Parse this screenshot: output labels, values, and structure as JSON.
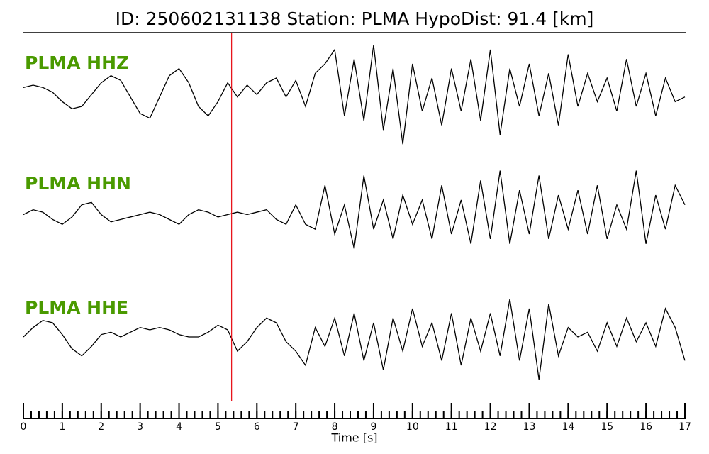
{
  "chart_data": {
    "type": "line",
    "title": "ID: 250602131138   Station: PLMA   HypoDist:    91.4 [km]",
    "x_label": "Time [s]",
    "xlim": [
      0,
      17
    ],
    "xticks": [
      0,
      1,
      2,
      3,
      4,
      5,
      6,
      7,
      8,
      9,
      10,
      11,
      12,
      13,
      14,
      15,
      16,
      17
    ],
    "minor_tick_interval": 0.2,
    "ylim": [
      -1.2,
      1.2
    ],
    "pick": {
      "x": 5.35,
      "color": "#e8141c"
    },
    "label_color": "#4a9a00",
    "x": [
      0,
      0.25,
      0.5,
      0.75,
      1,
      1.25,
      1.5,
      1.75,
      2,
      2.25,
      2.5,
      2.75,
      3,
      3.25,
      3.5,
      3.75,
      4,
      4.25,
      4.5,
      4.75,
      5,
      5.25,
      5.5,
      5.75,
      6,
      6.25,
      6.5,
      6.75,
      7,
      7.25,
      7.5,
      7.75,
      8,
      8.25,
      8.5,
      8.75,
      9,
      9.25,
      9.5,
      9.75,
      10,
      10.25,
      10.5,
      10.75,
      11,
      11.25,
      11.5,
      11.75,
      12,
      12.25,
      12.5,
      12.75,
      13,
      13.25,
      13.5,
      13.75,
      14,
      14.25,
      14.5,
      14.75,
      15,
      15.25,
      15.5,
      15.75,
      16,
      16.25,
      16.5,
      16.75,
      17
    ],
    "series": [
      {
        "name": "PLMA HHZ",
        "color": "#000000",
        "values": [
          0.1,
          0.15,
          0.1,
          0.0,
          -0.2,
          -0.35,
          -0.3,
          -0.05,
          0.2,
          0.35,
          0.25,
          -0.1,
          -0.45,
          -0.55,
          -0.1,
          0.35,
          0.5,
          0.2,
          -0.3,
          -0.5,
          -0.2,
          0.2,
          -0.1,
          0.15,
          -0.05,
          0.2,
          0.3,
          -0.1,
          0.25,
          -0.3,
          0.4,
          0.6,
          0.9,
          -0.5,
          0.7,
          -0.6,
          1.0,
          -0.8,
          0.5,
          -1.1,
          0.6,
          -0.4,
          0.3,
          -0.7,
          0.5,
          -0.4,
          0.7,
          -0.6,
          0.9,
          -0.9,
          0.5,
          -0.3,
          0.6,
          -0.5,
          0.4,
          -0.7,
          0.8,
          -0.3,
          0.4,
          -0.2,
          0.3,
          -0.4,
          0.7,
          -0.3,
          0.4,
          -0.5,
          0.3,
          -0.2,
          -0.1
        ]
      },
      {
        "name": "PLMA HHN",
        "color": "#000000",
        "values": [
          0.0,
          0.1,
          0.05,
          -0.1,
          -0.2,
          -0.05,
          0.2,
          0.25,
          0.0,
          -0.15,
          -0.1,
          -0.05,
          0.0,
          0.05,
          0.0,
          -0.1,
          -0.2,
          0.0,
          0.1,
          0.05,
          -0.05,
          0.0,
          0.05,
          0.0,
          0.05,
          0.1,
          -0.1,
          -0.2,
          0.2,
          -0.2,
          -0.3,
          0.6,
          -0.4,
          0.2,
          -0.7,
          0.8,
          -0.3,
          0.3,
          -0.5,
          0.4,
          -0.2,
          0.3,
          -0.5,
          0.6,
          -0.4,
          0.3,
          -0.6,
          0.7,
          -0.5,
          0.9,
          -0.6,
          0.5,
          -0.4,
          0.8,
          -0.5,
          0.4,
          -0.3,
          0.5,
          -0.4,
          0.6,
          -0.5,
          0.2,
          -0.3,
          0.9,
          -0.6,
          0.4,
          -0.3,
          0.6,
          0.2
        ]
      },
      {
        "name": "PLMA HHE",
        "color": "#000000",
        "values": [
          0.0,
          0.2,
          0.35,
          0.3,
          0.05,
          -0.25,
          -0.4,
          -0.2,
          0.05,
          0.1,
          0.0,
          0.1,
          0.2,
          0.15,
          0.2,
          0.15,
          0.05,
          0.0,
          0.0,
          0.1,
          0.25,
          0.15,
          -0.3,
          -0.1,
          0.2,
          0.4,
          0.3,
          -0.1,
          -0.3,
          -0.6,
          0.2,
          -0.2,
          0.4,
          -0.4,
          0.5,
          -0.5,
          0.3,
          -0.7,
          0.4,
          -0.3,
          0.6,
          -0.2,
          0.3,
          -0.5,
          0.5,
          -0.6,
          0.4,
          -0.3,
          0.5,
          -0.4,
          0.8,
          -0.5,
          0.6,
          -0.9,
          0.7,
          -0.4,
          0.2,
          0.0,
          0.1,
          -0.3,
          0.3,
          -0.2,
          0.4,
          -0.1,
          0.3,
          -0.2,
          0.6,
          0.2,
          -0.5
        ]
      }
    ]
  }
}
